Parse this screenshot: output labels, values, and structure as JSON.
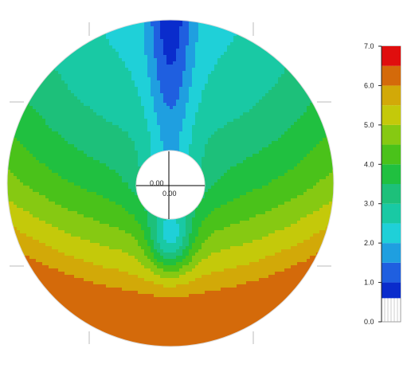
{
  "chart_data": {
    "type": "heatmap",
    "title": "",
    "center_labels": {
      "x": "0.00",
      "y": "0.00"
    },
    "colorbar": {
      "range": [
        0.0,
        7.0
      ],
      "ticks": [
        {
          "value": 0.0,
          "label": "0.0"
        },
        {
          "value": 1.0,
          "label": "1.0"
        },
        {
          "value": 2.0,
          "label": "2.0"
        },
        {
          "value": 3.0,
          "label": "3.0"
        },
        {
          "value": 4.0,
          "label": "4.0"
        },
        {
          "value": 5.0,
          "label": "5.0"
        },
        {
          "value": 6.0,
          "label": "6.0"
        },
        {
          "value": 7.0,
          "label": "7.0"
        }
      ],
      "bands": [
        {
          "from": 0.6,
          "to": 1.0,
          "color": "#0a2ccc"
        },
        {
          "from": 1.0,
          "to": 1.5,
          "color": "#1f5fe0"
        },
        {
          "from": 1.5,
          "to": 2.0,
          "color": "#1f9fe0"
        },
        {
          "from": 2.0,
          "to": 2.5,
          "color": "#1fd0d8"
        },
        {
          "from": 2.5,
          "to": 3.0,
          "color": "#19c9a4"
        },
        {
          "from": 3.0,
          "to": 3.5,
          "color": "#1dc07a"
        },
        {
          "from": 3.5,
          "to": 4.0,
          "color": "#20c040"
        },
        {
          "from": 4.0,
          "to": 4.5,
          "color": "#4ac21a"
        },
        {
          "from": 4.5,
          "to": 5.0,
          "color": "#86c912"
        },
        {
          "from": 5.0,
          "to": 5.5,
          "color": "#c4c90a"
        },
        {
          "from": 5.5,
          "to": 6.0,
          "color": "#d2a908"
        },
        {
          "from": 6.0,
          "to": 6.5,
          "color": "#d46a0a"
        },
        {
          "from": 6.5,
          "to": 7.0,
          "color": "#e00e0e"
        }
      ]
    },
    "field": {
      "description_of_shape": "annular disc, low values near top-center and below hole, rising radially toward bottom rim",
      "max_value": 6.4,
      "min_value": 0.7
    }
  }
}
